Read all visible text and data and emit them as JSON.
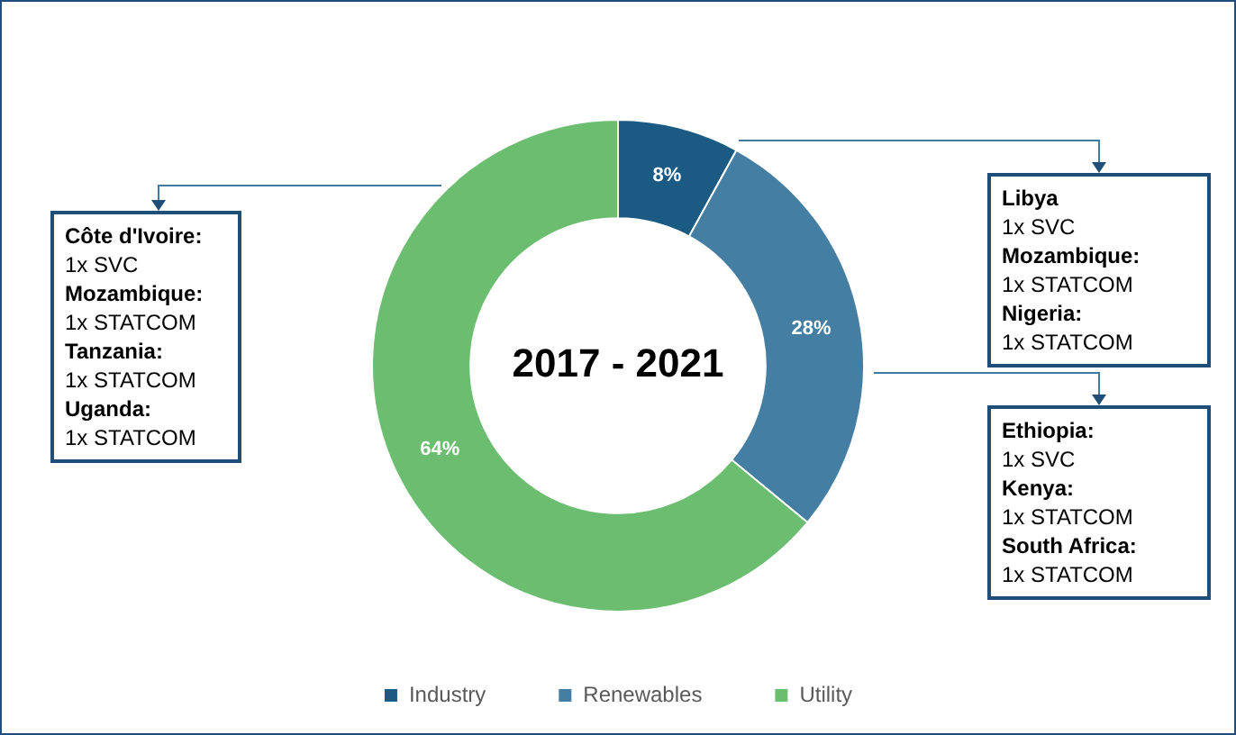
{
  "chart_data": {
    "type": "donut",
    "title": "2017 - 2021",
    "categories": [
      "Industry",
      "Renewables",
      "Utility"
    ],
    "values": [
      8,
      28,
      64
    ],
    "colors": [
      "#1b5a82",
      "#447ea3",
      "#6bbd6f"
    ],
    "value_labels": [
      "8%",
      "28%",
      "64%"
    ],
    "legend": "bottom",
    "annotations": [
      "Côte d'Ivoire:\n1x SVC\nMozambique:\n1x STATCOM\nTanzania:\n1x STATCOM\nUganda:\n1x STATCOM",
      "Libya\n1x SVC\nMozambique:\n1x STATCOM\nNigeria:\n1x STATCOM",
      "Ethiopia:\n1x SVC\nKenya:\n1x STATCOM\nSouth Africa:\n1x STATCOM"
    ]
  }
}
